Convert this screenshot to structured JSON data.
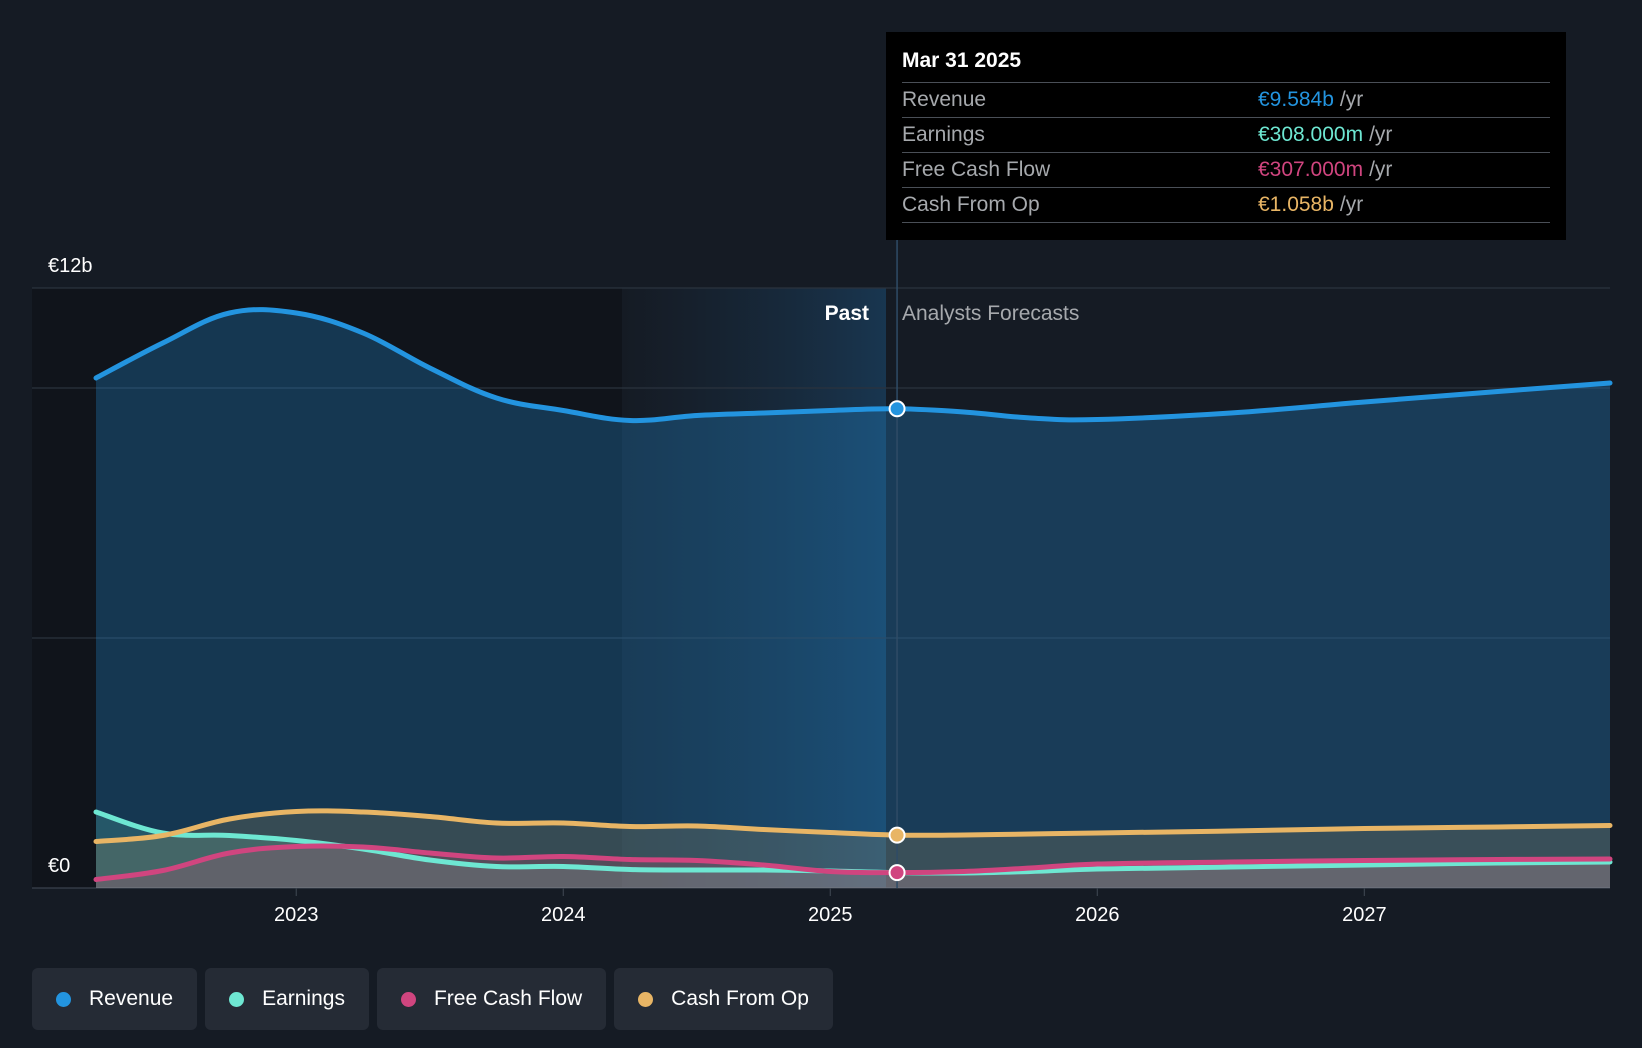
{
  "chart_data": {
    "type": "area",
    "y_axis": {
      "min_label": "€0",
      "max_label": "€12b",
      "ylim": [
        0,
        12
      ]
    },
    "x_ticks": [
      "2023",
      "2024",
      "2025",
      "2026",
      "2027"
    ],
    "xlim": [
      2022.25,
      2027.92
    ],
    "regions": {
      "past_label": "Past",
      "forecast_label": "Analysts Forecasts",
      "divider_x": 2025.25
    },
    "grid": true,
    "series": [
      {
        "name": "Revenue",
        "color": "#2394df",
        "x": [
          2022.25,
          2022.5,
          2022.75,
          2023.0,
          2023.25,
          2023.5,
          2023.75,
          2024.0,
          2024.25,
          2024.5,
          2024.75,
          2025.0,
          2025.25,
          2025.5,
          2025.75,
          2026.0,
          2026.5,
          2027.0,
          2027.5,
          2027.92
        ],
        "y": [
          10.2,
          10.9,
          11.5,
          11.5,
          11.1,
          10.4,
          9.8,
          9.55,
          9.35,
          9.45,
          9.5,
          9.55,
          9.584,
          9.52,
          9.4,
          9.37,
          9.5,
          9.72,
          9.93,
          10.1
        ]
      },
      {
        "name": "Earnings",
        "color": "#6ee7d2",
        "x": [
          2022.25,
          2022.5,
          2022.75,
          2023.0,
          2023.25,
          2023.5,
          2023.75,
          2024.0,
          2024.25,
          2024.5,
          2024.75,
          2025.0,
          2025.25,
          2025.5,
          2025.75,
          2026.0,
          2026.5,
          2027.0,
          2027.5,
          2027.92
        ],
        "y": [
          1.52,
          1.1,
          1.05,
          0.95,
          0.78,
          0.56,
          0.43,
          0.43,
          0.37,
          0.36,
          0.36,
          0.34,
          0.308,
          0.3,
          0.33,
          0.38,
          0.42,
          0.46,
          0.5,
          0.52
        ]
      },
      {
        "name": "Free Cash Flow",
        "color": "#d0457f",
        "x": [
          2022.25,
          2022.5,
          2022.75,
          2023.0,
          2023.25,
          2023.5,
          2023.75,
          2024.0,
          2024.25,
          2024.5,
          2024.75,
          2025.0,
          2025.25,
          2025.5,
          2025.75,
          2026.0,
          2026.5,
          2027.0,
          2027.5,
          2027.92
        ],
        "y": [
          0.17,
          0.35,
          0.7,
          0.83,
          0.82,
          0.7,
          0.6,
          0.63,
          0.57,
          0.55,
          0.46,
          0.33,
          0.307,
          0.33,
          0.4,
          0.48,
          0.52,
          0.55,
          0.57,
          0.58
        ]
      },
      {
        "name": "Cash From Op",
        "color": "#e8b565",
        "x": [
          2022.25,
          2022.5,
          2022.75,
          2023.0,
          2023.25,
          2023.5,
          2023.75,
          2024.0,
          2024.25,
          2024.5,
          2024.75,
          2025.0,
          2025.25,
          2025.5,
          2025.75,
          2026.0,
          2026.5,
          2027.0,
          2027.5,
          2027.92
        ],
        "y": [
          0.93,
          1.05,
          1.38,
          1.53,
          1.52,
          1.43,
          1.3,
          1.3,
          1.23,
          1.24,
          1.17,
          1.11,
          1.058,
          1.06,
          1.08,
          1.1,
          1.14,
          1.19,
          1.22,
          1.25
        ]
      }
    ]
  },
  "tooltip": {
    "date": "Mar 31 2025",
    "unit": "/yr",
    "rows": [
      {
        "name": "Revenue",
        "value": "€9.584b",
        "color": "#2394df"
      },
      {
        "name": "Earnings",
        "value": "€308.000m",
        "color": "#6ee7d2"
      },
      {
        "name": "Free Cash Flow",
        "value": "€307.000m",
        "color": "#d0457f"
      },
      {
        "name": "Cash From Op",
        "value": "€1.058b",
        "color": "#e8b565"
      }
    ]
  },
  "legend": [
    {
      "label": "Revenue",
      "color": "#2394df"
    },
    {
      "label": "Earnings",
      "color": "#6ee7d2"
    },
    {
      "label": "Free Cash Flow",
      "color": "#d0457f"
    },
    {
      "label": "Cash From Op",
      "color": "#e8b565"
    }
  ]
}
